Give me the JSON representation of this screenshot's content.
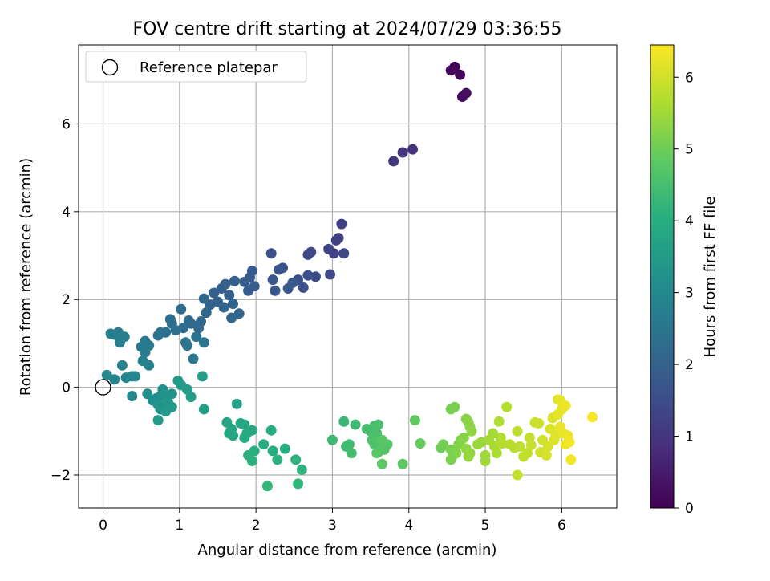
{
  "chart_data": {
    "type": "scatter",
    "title": "FOV centre drift starting at 2024/07/29 03:36:55",
    "xlabel": "Angular distance from reference (arcmin)",
    "ylabel": "Rotation from reference (arcmin)",
    "xlim": [
      -0.32,
      6.72
    ],
    "ylim": [
      -2.75,
      7.8
    ],
    "xticks": [
      0,
      1,
      2,
      3,
      4,
      5,
      6
    ],
    "yticks": [
      -2,
      0,
      2,
      4,
      6
    ],
    "xtick_labels": [
      "0",
      "1",
      "2",
      "3",
      "4",
      "5",
      "6"
    ],
    "ytick_labels": [
      "−2",
      "0",
      "2",
      "4",
      "6"
    ],
    "grid": true,
    "legend": {
      "location": "upper left",
      "entries": [
        {
          "label": "Reference platepar",
          "marker": "open-circle"
        }
      ]
    },
    "reference_point": {
      "x": 0.0,
      "y": 0.0
    },
    "colorbar": {
      "label": "Hours from first FF file",
      "colormap": "viridis",
      "range": [
        0,
        6.45
      ],
      "ticks": [
        0,
        1,
        2,
        3,
        4,
        5,
        6
      ],
      "tick_labels": [
        "0",
        "1",
        "2",
        "3",
        "4",
        "5",
        "6"
      ]
    },
    "points": [
      {
        "x": 4.55,
        "y": 7.22,
        "t": 0.05
      },
      {
        "x": 4.6,
        "y": 7.3,
        "t": 0.1
      },
      {
        "x": 4.67,
        "y": 7.12,
        "t": 0.15
      },
      {
        "x": 4.7,
        "y": 6.62,
        "t": 0.2
      },
      {
        "x": 4.75,
        "y": 6.7,
        "t": 0.25
      },
      {
        "x": 4.05,
        "y": 5.42,
        "t": 0.9
      },
      {
        "x": 3.92,
        "y": 5.35,
        "t": 0.95
      },
      {
        "x": 3.8,
        "y": 5.15,
        "t": 1.0
      },
      {
        "x": 3.12,
        "y": 3.72,
        "t": 1.2
      },
      {
        "x": 3.05,
        "y": 3.35,
        "t": 1.22
      },
      {
        "x": 3.08,
        "y": 3.4,
        "t": 1.25
      },
      {
        "x": 2.95,
        "y": 3.15,
        "t": 1.3
      },
      {
        "x": 3.02,
        "y": 3.05,
        "t": 1.3
      },
      {
        "x": 3.15,
        "y": 3.05,
        "t": 1.35
      },
      {
        "x": 2.72,
        "y": 3.08,
        "t": 1.4
      },
      {
        "x": 2.68,
        "y": 3.02,
        "t": 1.42
      },
      {
        "x": 2.97,
        "y": 2.57,
        "t": 1.45
      },
      {
        "x": 2.78,
        "y": 2.52,
        "t": 1.5
      },
      {
        "x": 2.55,
        "y": 2.45,
        "t": 1.55
      },
      {
        "x": 2.62,
        "y": 2.27,
        "t": 1.55
      },
      {
        "x": 2.68,
        "y": 2.55,
        "t": 1.6
      },
      {
        "x": 2.2,
        "y": 3.05,
        "t": 1.6
      },
      {
        "x": 2.35,
        "y": 2.72,
        "t": 1.65
      },
      {
        "x": 2.3,
        "y": 2.68,
        "t": 1.7
      },
      {
        "x": 2.22,
        "y": 2.45,
        "t": 1.75
      },
      {
        "x": 2.25,
        "y": 2.2,
        "t": 1.75
      },
      {
        "x": 2.42,
        "y": 2.25,
        "t": 1.8
      },
      {
        "x": 2.48,
        "y": 2.38,
        "t": 1.8
      },
      {
        "x": 1.95,
        "y": 2.65,
        "t": 1.85
      },
      {
        "x": 1.92,
        "y": 2.5,
        "t": 1.85
      },
      {
        "x": 1.85,
        "y": 2.4,
        "t": 1.9
      },
      {
        "x": 1.98,
        "y": 2.3,
        "t": 1.9
      },
      {
        "x": 1.9,
        "y": 2.2,
        "t": 1.92
      },
      {
        "x": 1.72,
        "y": 2.42,
        "t": 1.95
      },
      {
        "x": 1.6,
        "y": 2.35,
        "t": 1.95
      },
      {
        "x": 1.55,
        "y": 2.25,
        "t": 2.0
      },
      {
        "x": 1.65,
        "y": 2.1,
        "t": 2.0
      },
      {
        "x": 1.45,
        "y": 2.15,
        "t": 2.0
      },
      {
        "x": 1.5,
        "y": 1.95,
        "t": 2.05
      },
      {
        "x": 1.4,
        "y": 1.88,
        "t": 2.05
      },
      {
        "x": 1.58,
        "y": 1.82,
        "t": 2.1
      },
      {
        "x": 1.7,
        "y": 1.9,
        "t": 2.1
      },
      {
        "x": 1.78,
        "y": 1.68,
        "t": 2.1
      },
      {
        "x": 1.68,
        "y": 1.58,
        "t": 2.15
      },
      {
        "x": 1.35,
        "y": 1.7,
        "t": 2.15
      },
      {
        "x": 1.32,
        "y": 2.02,
        "t": 2.15
      },
      {
        "x": 1.28,
        "y": 1.5,
        "t": 2.2
      },
      {
        "x": 1.25,
        "y": 1.35,
        "t": 2.2
      },
      {
        "x": 1.15,
        "y": 1.45,
        "t": 2.2
      },
      {
        "x": 1.02,
        "y": 1.78,
        "t": 2.25
      },
      {
        "x": 1.12,
        "y": 1.52,
        "t": 2.25
      },
      {
        "x": 1.05,
        "y": 1.35,
        "t": 2.3
      },
      {
        "x": 0.95,
        "y": 1.3,
        "t": 2.3
      },
      {
        "x": 0.88,
        "y": 1.55,
        "t": 2.3
      },
      {
        "x": 0.9,
        "y": 1.45,
        "t": 2.35
      },
      {
        "x": 0.82,
        "y": 1.25,
        "t": 2.35
      },
      {
        "x": 0.75,
        "y": 1.25,
        "t": 2.4
      },
      {
        "x": 0.72,
        "y": 1.18,
        "t": 2.4
      },
      {
        "x": 1.22,
        "y": 1.15,
        "t": 2.45
      },
      {
        "x": 1.32,
        "y": 1.02,
        "t": 2.45
      },
      {
        "x": 1.08,
        "y": 1.02,
        "t": 2.5
      },
      {
        "x": 1.1,
        "y": 0.95,
        "t": 2.5
      },
      {
        "x": 1.18,
        "y": 0.65,
        "t": 2.55
      },
      {
        "x": 0.55,
        "y": 1.05,
        "t": 2.6
      },
      {
        "x": 0.5,
        "y": 0.92,
        "t": 2.6
      },
      {
        "x": 0.55,
        "y": 0.8,
        "t": 2.65
      },
      {
        "x": 0.6,
        "y": 0.95,
        "t": 2.65
      },
      {
        "x": 0.2,
        "y": 1.25,
        "t": 2.7
      },
      {
        "x": 0.15,
        "y": 1.2,
        "t": 2.7
      },
      {
        "x": 0.1,
        "y": 1.22,
        "t": 2.72
      },
      {
        "x": 0.28,
        "y": 1.15,
        "t": 2.75
      },
      {
        "x": 0.22,
        "y": 1.02,
        "t": 2.75
      },
      {
        "x": 0.52,
        "y": 0.6,
        "t": 2.8
      },
      {
        "x": 0.6,
        "y": 0.5,
        "t": 2.8
      },
      {
        "x": 0.25,
        "y": 0.5,
        "t": 2.85
      },
      {
        "x": 0.3,
        "y": 0.22,
        "t": 2.9
      },
      {
        "x": 0.15,
        "y": 0.18,
        "t": 2.9
      },
      {
        "x": 0.38,
        "y": 0.25,
        "t": 2.95
      },
      {
        "x": 0.42,
        "y": 0.25,
        "t": 2.95
      },
      {
        "x": 0.05,
        "y": 0.28,
        "t": 3.0
      },
      {
        "x": 0.38,
        "y": -0.2,
        "t": 3.0
      },
      {
        "x": 0.58,
        "y": -0.15,
        "t": 3.1
      },
      {
        "x": 0.7,
        "y": -0.25,
        "t": 3.15
      },
      {
        "x": 0.65,
        "y": -0.3,
        "t": 3.2
      },
      {
        "x": 0.75,
        "y": -0.2,
        "t": 3.2
      },
      {
        "x": 0.78,
        "y": -0.05,
        "t": 3.25
      },
      {
        "x": 0.8,
        "y": -0.15,
        "t": 3.25
      },
      {
        "x": 0.85,
        "y": -0.2,
        "t": 3.3
      },
      {
        "x": 0.9,
        "y": -0.15,
        "t": 3.3
      },
      {
        "x": 0.72,
        "y": -0.4,
        "t": 3.3
      },
      {
        "x": 0.75,
        "y": -0.5,
        "t": 3.35
      },
      {
        "x": 0.8,
        "y": -0.42,
        "t": 3.35
      },
      {
        "x": 0.85,
        "y": -0.35,
        "t": 3.4
      },
      {
        "x": 0.9,
        "y": -0.45,
        "t": 3.4
      },
      {
        "x": 0.82,
        "y": -0.55,
        "t": 3.45
      },
      {
        "x": 0.72,
        "y": -0.75,
        "t": 3.5
      },
      {
        "x": 0.98,
        "y": 0.15,
        "t": 3.5
      },
      {
        "x": 1.02,
        "y": 0.05,
        "t": 3.5
      },
      {
        "x": 1.1,
        "y": -0.05,
        "t": 3.55
      },
      {
        "x": 1.15,
        "y": -0.22,
        "t": 3.55
      },
      {
        "x": 1.3,
        "y": 0.25,
        "t": 3.6
      },
      {
        "x": 1.32,
        "y": -0.5,
        "t": 3.6
      },
      {
        "x": 1.75,
        "y": -0.38,
        "t": 3.7
      },
      {
        "x": 1.62,
        "y": -0.8,
        "t": 3.75
      },
      {
        "x": 1.68,
        "y": -0.95,
        "t": 3.75
      },
      {
        "x": 1.65,
        "y": -1.05,
        "t": 3.8
      },
      {
        "x": 1.7,
        "y": -1.1,
        "t": 3.8
      },
      {
        "x": 1.8,
        "y": -0.82,
        "t": 3.85
      },
      {
        "x": 1.85,
        "y": -0.85,
        "t": 3.85
      },
      {
        "x": 1.95,
        "y": -0.98,
        "t": 3.9
      },
      {
        "x": 1.88,
        "y": -1.05,
        "t": 3.9
      },
      {
        "x": 1.85,
        "y": -1.15,
        "t": 3.95
      },
      {
        "x": 2.1,
        "y": -1.3,
        "t": 3.95
      },
      {
        "x": 2.2,
        "y": -0.98,
        "t": 4.0
      },
      {
        "x": 2.22,
        "y": -1.45,
        "t": 4.0
      },
      {
        "x": 2.38,
        "y": -1.4,
        "t": 4.05
      },
      {
        "x": 1.98,
        "y": -1.45,
        "t": 4.05
      },
      {
        "x": 1.9,
        "y": -1.55,
        "t": 4.1
      },
      {
        "x": 1.95,
        "y": -1.68,
        "t": 4.1
      },
      {
        "x": 2.28,
        "y": -1.65,
        "t": 4.1
      },
      {
        "x": 2.52,
        "y": -1.65,
        "t": 4.15
      },
      {
        "x": 2.6,
        "y": -1.88,
        "t": 4.15
      },
      {
        "x": 2.15,
        "y": -2.25,
        "t": 4.2
      },
      {
        "x": 2.55,
        "y": -2.2,
        "t": 4.2
      },
      {
        "x": 3.15,
        "y": -0.78,
        "t": 4.3
      },
      {
        "x": 3.3,
        "y": -0.85,
        "t": 4.35
      },
      {
        "x": 3.0,
        "y": -1.2,
        "t": 4.35
      },
      {
        "x": 3.18,
        "y": -1.35,
        "t": 4.4
      },
      {
        "x": 3.22,
        "y": -1.3,
        "t": 4.4
      },
      {
        "x": 3.25,
        "y": -1.5,
        "t": 4.45
      },
      {
        "x": 3.45,
        "y": -0.95,
        "t": 4.5
      },
      {
        "x": 3.5,
        "y": -1.0,
        "t": 4.5
      },
      {
        "x": 3.55,
        "y": -0.88,
        "t": 4.5
      },
      {
        "x": 3.6,
        "y": -0.85,
        "t": 4.55
      },
      {
        "x": 3.58,
        "y": -1.05,
        "t": 4.55
      },
      {
        "x": 3.52,
        "y": -1.2,
        "t": 4.6
      },
      {
        "x": 3.55,
        "y": -1.3,
        "t": 4.6
      },
      {
        "x": 3.62,
        "y": -1.32,
        "t": 4.6
      },
      {
        "x": 3.65,
        "y": -1.4,
        "t": 4.65
      },
      {
        "x": 3.6,
        "y": -1.48,
        "t": 4.65
      },
      {
        "x": 3.68,
        "y": -1.42,
        "t": 4.7
      },
      {
        "x": 3.72,
        "y": -1.3,
        "t": 4.7
      },
      {
        "x": 3.65,
        "y": -1.2,
        "t": 4.75
      },
      {
        "x": 3.58,
        "y": -1.5,
        "t": 4.75
      },
      {
        "x": 3.65,
        "y": -1.75,
        "t": 4.8
      },
      {
        "x": 3.92,
        "y": -1.75,
        "t": 4.8
      },
      {
        "x": 4.08,
        "y": -0.75,
        "t": 4.85
      },
      {
        "x": 4.15,
        "y": -1.28,
        "t": 4.9
      },
      {
        "x": 4.42,
        "y": -1.38,
        "t": 5.0
      },
      {
        "x": 4.45,
        "y": -1.3,
        "t": 5.05
      },
      {
        "x": 4.55,
        "y": -0.5,
        "t": 5.1
      },
      {
        "x": 4.6,
        "y": -0.45,
        "t": 5.1
      },
      {
        "x": 4.55,
        "y": -1.42,
        "t": 5.1
      },
      {
        "x": 4.58,
        "y": -1.55,
        "t": 5.15
      },
      {
        "x": 4.55,
        "y": -1.65,
        "t": 5.15
      },
      {
        "x": 4.62,
        "y": -1.5,
        "t": 5.2
      },
      {
        "x": 4.65,
        "y": -1.3,
        "t": 5.2
      },
      {
        "x": 4.68,
        "y": -1.2,
        "t": 5.2
      },
      {
        "x": 4.72,
        "y": -1.15,
        "t": 5.25
      },
      {
        "x": 4.75,
        "y": -0.72,
        "t": 5.25
      },
      {
        "x": 4.78,
        "y": -0.8,
        "t": 5.3
      },
      {
        "x": 4.8,
        "y": -0.9,
        "t": 5.3
      },
      {
        "x": 4.82,
        "y": -1.0,
        "t": 5.35
      },
      {
        "x": 4.75,
        "y": -1.4,
        "t": 5.35
      },
      {
        "x": 4.8,
        "y": -1.5,
        "t": 5.4
      },
      {
        "x": 4.78,
        "y": -1.58,
        "t": 5.4
      },
      {
        "x": 4.9,
        "y": -1.3,
        "t": 5.45
      },
      {
        "x": 4.95,
        "y": -1.25,
        "t": 5.45
      },
      {
        "x": 5.0,
        "y": -1.55,
        "t": 5.5
      },
      {
        "x": 5.0,
        "y": -1.68,
        "t": 5.5
      },
      {
        "x": 5.05,
        "y": -1.2,
        "t": 5.55
      },
      {
        "x": 5.1,
        "y": -1.05,
        "t": 5.55
      },
      {
        "x": 5.12,
        "y": -1.35,
        "t": 5.6
      },
      {
        "x": 5.15,
        "y": -1.5,
        "t": 5.6
      },
      {
        "x": 5.18,
        "y": -0.78,
        "t": 5.65
      },
      {
        "x": 5.2,
        "y": -1.15,
        "t": 5.65
      },
      {
        "x": 5.22,
        "y": -1.28,
        "t": 5.7
      },
      {
        "x": 5.28,
        "y": -0.45,
        "t": 5.7
      },
      {
        "x": 5.32,
        "y": -1.3,
        "t": 5.75
      },
      {
        "x": 5.38,
        "y": -1.38,
        "t": 5.75
      },
      {
        "x": 5.42,
        "y": -1.0,
        "t": 5.8
      },
      {
        "x": 5.45,
        "y": -1.35,
        "t": 5.8
      },
      {
        "x": 5.5,
        "y": -1.58,
        "t": 5.85
      },
      {
        "x": 5.55,
        "y": -1.5,
        "t": 5.85
      },
      {
        "x": 5.42,
        "y": -2.0,
        "t": 5.85
      },
      {
        "x": 5.6,
        "y": -1.32,
        "t": 5.9
      },
      {
        "x": 5.58,
        "y": -1.15,
        "t": 5.9
      },
      {
        "x": 5.65,
        "y": -0.8,
        "t": 5.95
      },
      {
        "x": 5.7,
        "y": -0.82,
        "t": 5.95
      },
      {
        "x": 5.72,
        "y": -1.48,
        "t": 6.0
      },
      {
        "x": 5.75,
        "y": -1.2,
        "t": 6.0
      },
      {
        "x": 5.8,
        "y": -1.55,
        "t": 6.05
      },
      {
        "x": 5.82,
        "y": -1.35,
        "t": 6.05
      },
      {
        "x": 5.85,
        "y": -0.95,
        "t": 6.1
      },
      {
        "x": 5.88,
        "y": -0.7,
        "t": 6.1
      },
      {
        "x": 5.9,
        "y": -1.2,
        "t": 6.1
      },
      {
        "x": 5.92,
        "y": -1.1,
        "t": 6.15
      },
      {
        "x": 5.95,
        "y": -0.28,
        "t": 6.15
      },
      {
        "x": 5.98,
        "y": -0.3,
        "t": 6.2
      },
      {
        "x": 5.95,
        "y": -0.62,
        "t": 6.2
      },
      {
        "x": 6.0,
        "y": -0.5,
        "t": 6.2
      },
      {
        "x": 5.98,
        "y": -0.9,
        "t": 6.25
      },
      {
        "x": 6.02,
        "y": -1.05,
        "t": 6.25
      },
      {
        "x": 6.05,
        "y": -0.42,
        "t": 6.3
      },
      {
        "x": 6.05,
        "y": -1.3,
        "t": 6.3
      },
      {
        "x": 6.08,
        "y": -1.1,
        "t": 6.3
      },
      {
        "x": 6.1,
        "y": -1.25,
        "t": 6.35
      },
      {
        "x": 6.12,
        "y": -1.65,
        "t": 6.35
      },
      {
        "x": 6.4,
        "y": -0.68,
        "t": 6.4
      }
    ]
  }
}
